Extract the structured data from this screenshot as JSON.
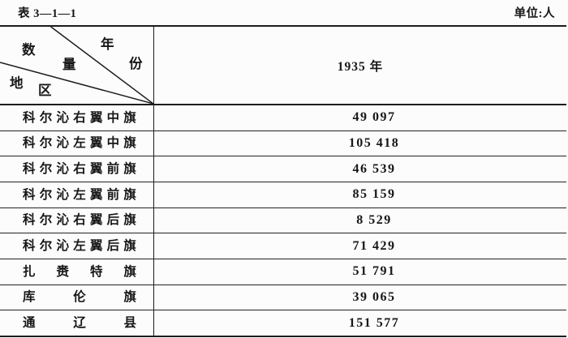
{
  "page": {
    "table_label": "表 3—1—1",
    "unit_label": "单位:人",
    "ink_color": "#1c1c1c",
    "background_color": "#fcfcfc"
  },
  "table": {
    "corner": {
      "top_label": "年份",
      "middle_label": "数量",
      "bottom_label": "地区",
      "top_label_chars": [
        "年",
        "份"
      ],
      "middle_label_chars": [
        "数",
        "量"
      ],
      "bottom_label_chars": [
        "地",
        "区"
      ]
    },
    "column_header": "1935 年",
    "rows": [
      {
        "region": "科尔沁右翼中旗",
        "value": "49 097"
      },
      {
        "region": "科尔沁左翼中旗",
        "value": "105 418"
      },
      {
        "region": "科尔沁右翼前旗",
        "value": "46 539"
      },
      {
        "region": "科尔沁左翼前旗",
        "value": "85 159"
      },
      {
        "region": "科尔沁右翼后旗",
        "value": "8 529"
      },
      {
        "region": "科尔沁左翼后旗",
        "value": "71 429"
      },
      {
        "region": "扎赉特旗",
        "value": "51 791"
      },
      {
        "region": "库伦旗",
        "value": "39 065"
      },
      {
        "region": "通辽县",
        "value": "151 577"
      }
    ]
  }
}
